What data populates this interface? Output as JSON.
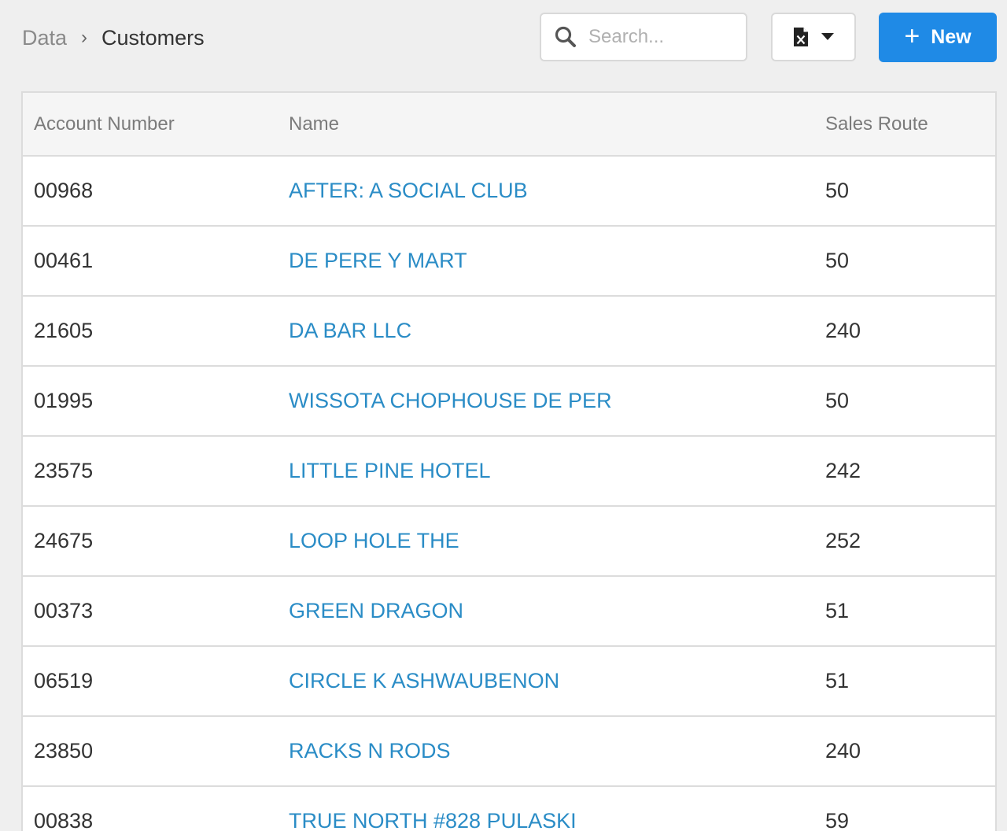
{
  "breadcrumb": {
    "root": "Data",
    "separator": "›",
    "current": "Customers"
  },
  "search": {
    "placeholder": "Search...",
    "value": "",
    "icon": "search-icon"
  },
  "export": {
    "icon": "excel-file-icon",
    "dropdown_icon": "caret-down-icon"
  },
  "new_button": {
    "icon": "plus-icon",
    "label": "New"
  },
  "colors": {
    "accent": "#1f8ae6",
    "link": "#2a8cc6",
    "background": "#efefef"
  },
  "table": {
    "columns": [
      "Account Number",
      "Name",
      "Sales Route"
    ],
    "rows": [
      {
        "account": "00968",
        "name": "AFTER: A SOCIAL CLUB",
        "route": "50"
      },
      {
        "account": "00461",
        "name": "DE PERE Y MART",
        "route": "50"
      },
      {
        "account": "21605",
        "name": "DA BAR LLC",
        "route": "240"
      },
      {
        "account": "01995",
        "name": "WISSOTA CHOPHOUSE DE PER",
        "route": "50"
      },
      {
        "account": "23575",
        "name": "LITTLE PINE HOTEL",
        "route": "242"
      },
      {
        "account": "24675",
        "name": "LOOP HOLE THE",
        "route": "252"
      },
      {
        "account": "00373",
        "name": "GREEN DRAGON",
        "route": "51"
      },
      {
        "account": "06519",
        "name": "CIRCLE K ASHWAUBENON",
        "route": "51"
      },
      {
        "account": "23850",
        "name": "RACKS N RODS",
        "route": "240"
      },
      {
        "account": "00838",
        "name": "TRUE NORTH #828 PULASKI",
        "route": "59"
      }
    ]
  }
}
